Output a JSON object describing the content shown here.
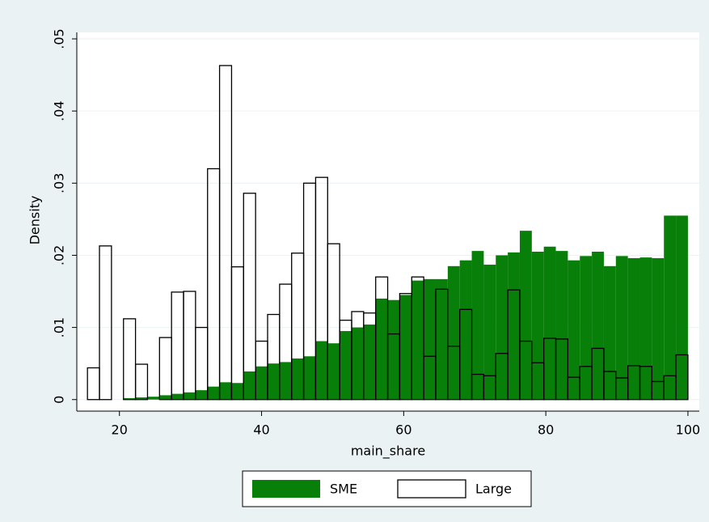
{
  "chart_data": {
    "type": "histogram",
    "xlabel": "main_share",
    "ylabel": "Density",
    "bins": [
      15.5,
      17.19,
      18.88,
      20.57,
      22.26,
      23.95,
      25.64,
      27.33,
      29.02,
      30.71,
      32.4,
      34.09,
      35.78,
      37.47,
      39.16,
      40.85,
      42.54,
      44.23,
      45.92,
      47.61,
      49.3,
      50.99,
      52.68,
      54.37,
      56.06,
      57.75,
      59.44,
      61.13,
      62.82,
      64.51,
      66.2,
      67.89,
      69.58,
      71.27,
      72.96,
      74.65,
      76.34,
      78.03,
      79.72,
      81.41,
      83.1,
      84.79,
      86.48,
      88.17,
      89.86,
      91.55,
      93.24,
      94.93,
      96.62,
      98.31,
      100.0
    ],
    "series": [
      {
        "name": "SME",
        "color": "#087f08",
        "filled": true,
        "values": [
          0,
          0,
          0,
          0.0002,
          0.0003,
          0.0004,
          0.0006,
          0.0008,
          0.001,
          0.0013,
          0.0018,
          0.0024,
          0.0023,
          0.0039,
          0.0046,
          0.005,
          0.0052,
          0.0057,
          0.006,
          0.0081,
          0.0078,
          0.0095,
          0.01,
          0.0104,
          0.014,
          0.0138,
          0.0145,
          0.0165,
          0.0167,
          0.0167,
          0.0185,
          0.0193,
          0.0206,
          0.0187,
          0.02,
          0.0204,
          0.0234,
          0.0205,
          0.0212,
          0.0206,
          0.0193,
          0.0199,
          0.0205,
          0.0185,
          0.0199,
          0.0196,
          0.0197,
          0.0196,
          0.0255,
          0.0255
        ]
      },
      {
        "name": "Large",
        "color": "#000000",
        "filled": false,
        "values": [
          0.0044,
          0.0213,
          0,
          0.0112,
          0.0049,
          0,
          0.0086,
          0.0149,
          0.015,
          0.01,
          0.032,
          0.0463,
          0.0184,
          0.0286,
          0.0081,
          0.0118,
          0.016,
          0.0203,
          0.03,
          0.0308,
          0.0216,
          0.011,
          0.0122,
          0.012,
          0.017,
          0.0091,
          0.0147,
          0.017,
          0.006,
          0.0153,
          0.0074,
          0.0125,
          0.0035,
          0.0033,
          0.0064,
          0.0152,
          0.0081,
          0.0051,
          0.0085,
          0.0084,
          0.0031,
          0.0046,
          0.0071,
          0.0039,
          0.003,
          0.0047,
          0.0046,
          0.0025,
          0.0033,
          0.0062
        ]
      }
    ],
    "xlim": [
      14,
      101.6
    ],
    "xticks": [
      20,
      40,
      60,
      80,
      100
    ],
    "ylim": [
      -0.0016,
      0.0509
    ],
    "yticks": [
      0,
      {
        "value": 0.01,
        "label": ".01"
      },
      {
        "value": 0.02,
        "label": ".02"
      },
      {
        "value": 0.03,
        "label": ".03"
      },
      {
        "value": 0.04,
        "label": ".04"
      },
      {
        "value": 0.05,
        "label": ".05"
      }
    ],
    "grid": true,
    "legend": "bottom"
  }
}
